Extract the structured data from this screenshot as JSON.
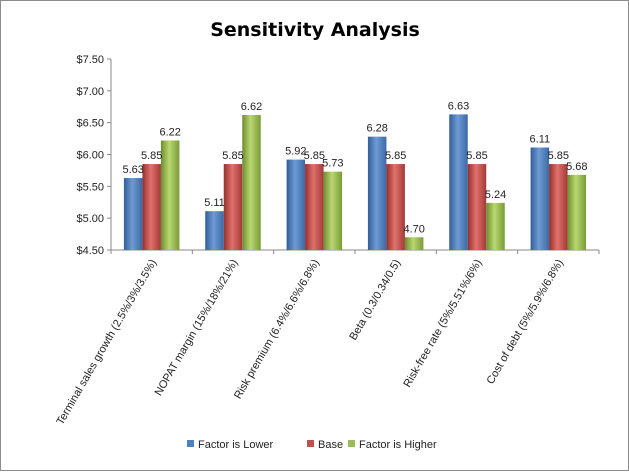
{
  "chart_data": {
    "type": "bar",
    "title": "Sensitivity Analysis",
    "xlabel": "",
    "ylabel": "",
    "ylim": [
      4.5,
      7.5
    ],
    "ytick_step": 0.5,
    "ytick_labels": [
      "$4.50",
      "$5.00",
      "$5.50",
      "$6.00",
      "$6.50",
      "$7.00",
      "$7.50"
    ],
    "grid": false,
    "legend_position": "bottom",
    "categories": [
      "Terminal sales growth (2.5%/3%/3.5%)",
      "NOPAT margin (15%/18%/21%)",
      "Risk premium (6.4%/6.6%/6.8%)",
      "Beta (0.3/0.34/0.5)",
      "Risk-free rate (5%/5.51%/6%)",
      "Cost of debt (5%/5.9%/6.8%)"
    ],
    "series": [
      {
        "name": "Factor is Lower",
        "color": "#4f81bd",
        "values": [
          5.63,
          5.11,
          5.92,
          6.28,
          6.63,
          6.11
        ],
        "labels": [
          "5.63",
          "5.11",
          "5.92",
          "6.28",
          "6.63",
          "6.11"
        ]
      },
      {
        "name": "Base",
        "color": "#c0504d",
        "values": [
          5.85,
          5.85,
          5.85,
          5.85,
          5.85,
          5.85
        ],
        "labels": [
          "5.85",
          "5.85",
          "5.85",
          "5.85",
          "5.85",
          "5.85"
        ]
      },
      {
        "name": "Factor is Higher",
        "color": "#9bbb59",
        "values": [
          6.22,
          6.62,
          5.73,
          4.7,
          5.24,
          5.68
        ],
        "labels": [
          "6.22",
          "6.62",
          "5.73",
          "4.70",
          "5.24",
          "5.68"
        ]
      }
    ]
  }
}
